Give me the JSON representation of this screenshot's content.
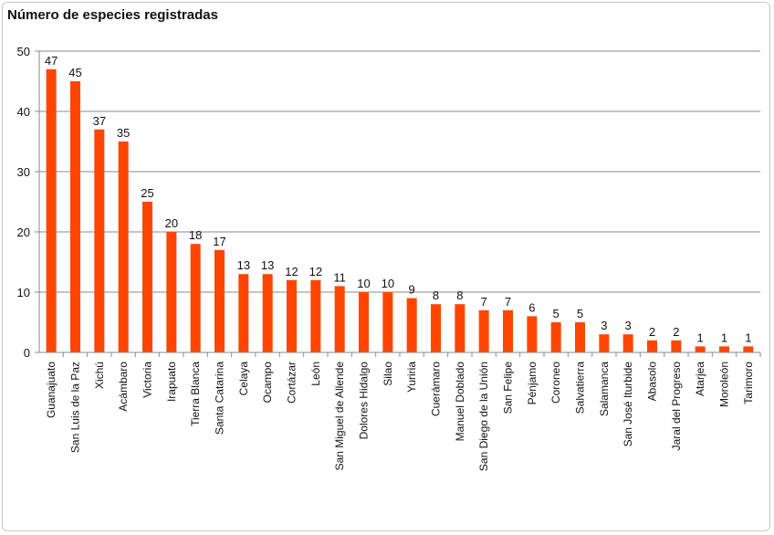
{
  "chart_data": {
    "type": "bar",
    "title": "Número de especies registradas",
    "categories": [
      "Guanajuato",
      "San Luis de la Paz",
      "Xichú",
      "Acámbaro",
      "Victoria",
      "Irapuato",
      "Tierra Blanca",
      "Santa Catarina",
      "Celaya",
      "Ocampo",
      "Cortázar",
      "León",
      "San Miguel de Allende",
      "Dolores Hidalgo",
      "Silao",
      "Yuriria",
      "Cuerámaro",
      "Manuel Doblado",
      "San Diego de la Unión",
      "San Felipe",
      "Pénjamo",
      "Coroneo",
      "Salvatierra",
      "Salamanca",
      "San José Iturbide",
      "Abasolo",
      "Jaral del Progreso",
      "Atarjea",
      "Moroleón",
      "Tarimoro"
    ],
    "values": [
      47,
      45,
      37,
      35,
      25,
      20,
      18,
      17,
      13,
      13,
      12,
      12,
      11,
      10,
      10,
      9,
      8,
      8,
      7,
      7,
      6,
      5,
      5,
      3,
      3,
      2,
      2,
      1,
      1,
      1
    ],
    "ylim": [
      0,
      50
    ],
    "yticks": [
      0,
      10,
      20,
      30,
      40,
      50
    ],
    "bar_color": "#ff4500",
    "grid": true,
    "data_labels": true
  }
}
